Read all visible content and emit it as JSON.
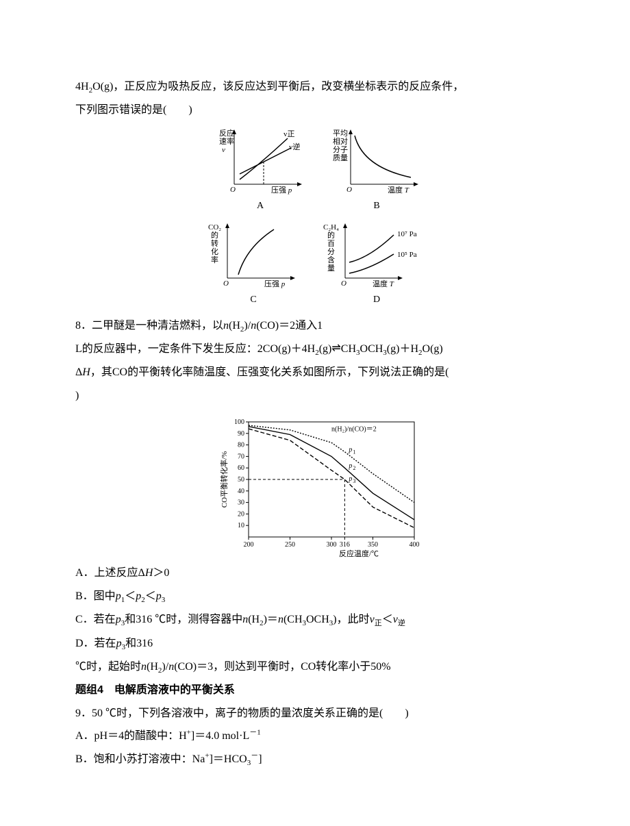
{
  "q7": {
    "line1_pre": "4H",
    "line1_sub": "2",
    "line1_post": "O(g)，正反应为吸热反应，该反应达到平衡后，改变横坐标表示的反应条件，",
    "line2": "下列图示错误的是(　　)",
    "chartA": {
      "type": "line",
      "ylabel": "反应速率v",
      "xlabel": "压强 p",
      "curve1_label": "v正",
      "curve2_label": "v逆",
      "letter": "A",
      "axis_color": "#000000",
      "line_color": "#000000",
      "bg": "#ffffff"
    },
    "chartB": {
      "type": "line",
      "ylabel": "平均相对分子质量",
      "xlabel": "温度 T",
      "letter": "B",
      "axis_color": "#000000",
      "line_color": "#000000",
      "bg": "#ffffff"
    },
    "chartC": {
      "type": "line",
      "ylabel": "CO₂的转化率",
      "xlabel": "压强 p",
      "letter": "C",
      "axis_color": "#000000",
      "line_color": "#000000",
      "bg": "#ffffff"
    },
    "chartD": {
      "type": "line",
      "ylabel": "C₂H₄的百分含量",
      "xlabel": "温度 T",
      "curve1_label": "10⁷ Pa",
      "curve2_label": "10⁵ Pa",
      "letter": "D",
      "axis_color": "#000000",
      "line_color": "#000000",
      "bg": "#ffffff"
    }
  },
  "q8": {
    "line1": "8．二甲醚是一种清洁燃料，以n(H₂)/n(CO)＝2通入1",
    "line2": "L的反应器中，一定条件下发生反应：2CO(g)＋4H₂(g)⇌CH₃OCH₃(g)＋H₂O(g)",
    "line3": "ΔH，其CO的平衡转化率随温度、压强变化关系如图所示，下列说法正确的是(",
    "line4": ")",
    "chart": {
      "type": "line",
      "ylabel": "CO平衡转化率/%",
      "xlabel": "反应温度/℃",
      "legend": "n(H₂)/n(CO)＝2",
      "p1": "p₁",
      "p2": "p₂",
      "p3": "p₃",
      "xticks": [
        200,
        250,
        300,
        316,
        350,
        400
      ],
      "yticks": [
        10,
        20,
        30,
        40,
        50,
        60,
        70,
        80,
        90,
        100
      ],
      "ylim": [
        0,
        100
      ],
      "xlim": [
        200,
        400
      ],
      "mark_x": 316,
      "mark_y": 50,
      "series": [
        {
          "name": "p1",
          "dash": "2,2",
          "points": [
            [
              200,
              97
            ],
            [
              250,
              93
            ],
            [
              300,
              82
            ],
            [
              316,
              74
            ],
            [
              350,
              55
            ],
            [
              400,
              30
            ]
          ]
        },
        {
          "name": "p2",
          "dash": "",
          "points": [
            [
              200,
              96
            ],
            [
              250,
              89
            ],
            [
              300,
              70
            ],
            [
              316,
              60
            ],
            [
              350,
              38
            ],
            [
              400,
              15
            ]
          ]
        },
        {
          "name": "p3",
          "dash": "6,3",
          "points": [
            [
              200,
              94
            ],
            [
              250,
              84
            ],
            [
              300,
              58
            ],
            [
              316,
              50
            ],
            [
              350,
              26
            ],
            [
              400,
              8
            ]
          ]
        }
      ],
      "axis_color": "#000000",
      "grid_color": "#000000",
      "bg": "#ffffff",
      "font_size": 10
    },
    "optA": "A．上述反应ΔH＞0",
    "optB": "B．图中p₁＜p₂＜p₃",
    "optC": "C．若在p₃和316 ℃时，测得容器中n(H₂)＝n(CH₃OCH₃)，此时v正＜v逆",
    "optD_1": "D．若在p₃和316",
    "optD_2": "℃时，起始时n(H₂)/n(CO)＝3，则达到平衡时，CO转化率小于50%"
  },
  "group4": {
    "title": "题组4　电解质溶液中的平衡关系"
  },
  "q9": {
    "line1": "9．50 ℃时，下列各溶液中，离子的物质的量浓度关系正确的是(　　)",
    "optA": "A．pH＝4的醋酸中：H⁺]＝4.0 mol·L⁻¹",
    "optB": "B．饱和小苏打溶液中：Na⁺]＝HCO₃⁻]"
  }
}
